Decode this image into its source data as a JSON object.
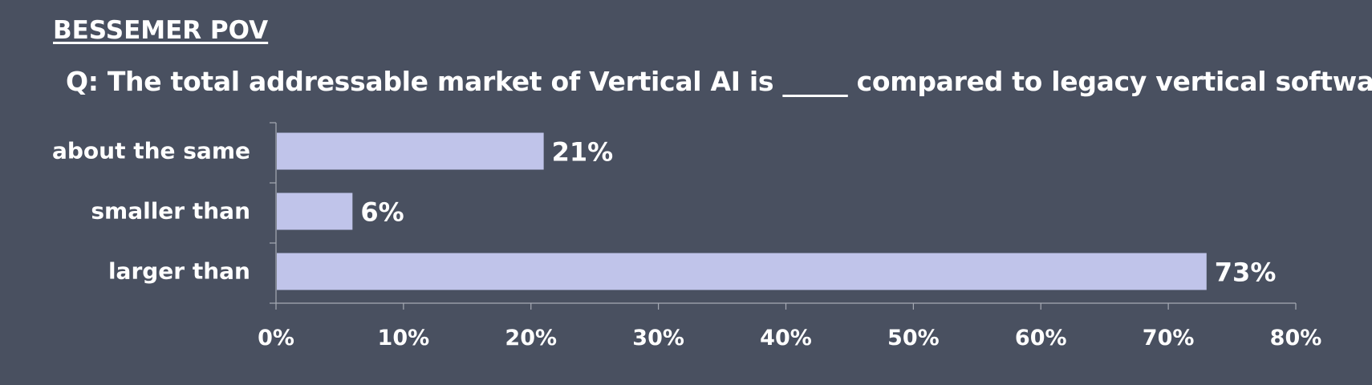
{
  "header": {
    "label": "BESSEMER POV"
  },
  "chart_data": {
    "type": "bar",
    "orientation": "horizontal",
    "title": "Q: The total addressable market of Vertical AI is _____ compared to legacy vertical software.",
    "categories": [
      "about the same",
      "smaller than",
      "larger than"
    ],
    "values": [
      21,
      6,
      73
    ],
    "value_labels": [
      "21%",
      "6%",
      "73%"
    ],
    "xlim": [
      0,
      80
    ],
    "xticks": [
      0,
      10,
      20,
      30,
      40,
      50,
      60,
      70,
      80
    ],
    "xtick_labels": [
      "0%",
      "10%",
      "20%",
      "30%",
      "40%",
      "50%",
      "60%",
      "70%",
      "80%"
    ],
    "xlabel": "",
    "ylabel": "",
    "grid": false,
    "legend": "none",
    "colors": {
      "bar": "#c0c4ea",
      "background": "#495060",
      "axis": "#a6aab4",
      "text": "#ffffff"
    }
  }
}
